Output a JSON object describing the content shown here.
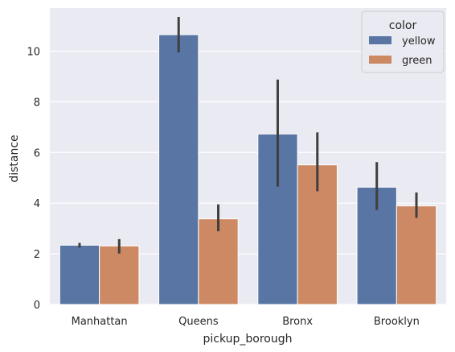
{
  "chart_data": {
    "type": "bar",
    "title": "",
    "xlabel": "pickup_borough",
    "ylabel": "distance",
    "categories": [
      "Manhattan",
      "Queens",
      "Bronx",
      "Brooklyn"
    ],
    "series": [
      {
        "name": "yellow",
        "color": "#5875A4",
        "values": [
          2.34,
          10.65,
          6.73,
          4.63
        ],
        "ci_low": [
          2.24,
          9.95,
          4.65,
          3.73
        ],
        "ci_high": [
          2.43,
          11.35,
          8.88,
          5.62
        ]
      },
      {
        "name": "green",
        "color": "#CC8963",
        "values": [
          2.31,
          3.38,
          5.51,
          3.89
        ],
        "ci_low": [
          2.01,
          2.89,
          4.47,
          3.42
        ],
        "ci_high": [
          2.58,
          3.95,
          6.79,
          4.42
        ]
      }
    ],
    "ylim": [
      0,
      11.7
    ],
    "yticks": [
      0,
      2,
      4,
      6,
      8,
      10
    ],
    "grid": true,
    "legend": {
      "title": "color",
      "placement": "top-right"
    },
    "background_color": "#EAEAF2",
    "grid_color": "#FFFFFF",
    "errorbar_color": "#3F3F3F"
  }
}
